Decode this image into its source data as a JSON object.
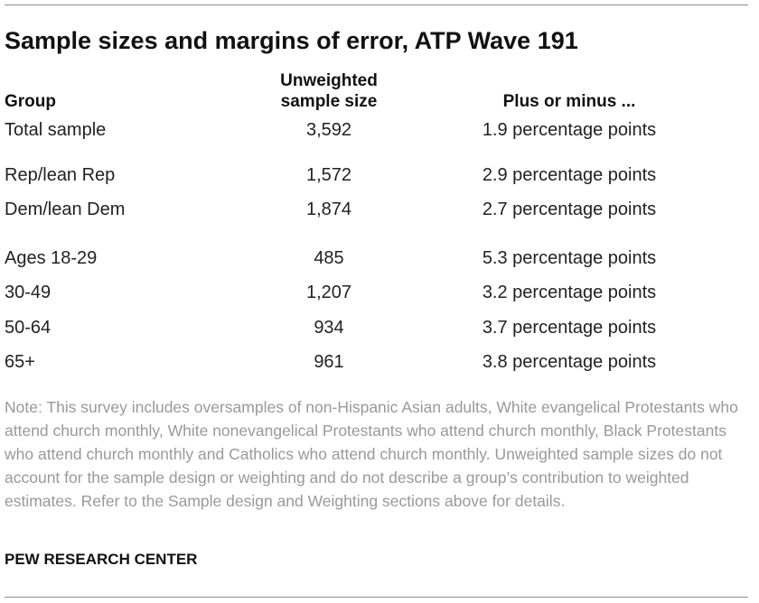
{
  "chart_data": {
    "type": "table",
    "title": "Sample sizes and margins of error, ATP Wave 191",
    "columns": [
      "Group",
      "Unweighted sample size",
      "Plus or minus ..."
    ],
    "header": {
      "group": "Group",
      "size_line1": "Unweighted",
      "size_line2": "sample size",
      "moe": "Plus or minus ..."
    },
    "rows": [
      {
        "group": "Total sample",
        "n": "3,592",
        "moe": "1.9 percentage points"
      },
      {
        "group": "Rep/lean Rep",
        "n": "1,572",
        "moe": "2.9 percentage points"
      },
      {
        "group": "Dem/lean Dem",
        "n": "1,874",
        "moe": "2.7 percentage points"
      },
      {
        "group": "Ages 18-29",
        "n": "485",
        "moe": "5.3 percentage points"
      },
      {
        "group": "30-49",
        "n": "1,207",
        "moe": "3.2 percentage points"
      },
      {
        "group": "50-64",
        "n": "934",
        "moe": "3.7 percentage points"
      },
      {
        "group": "65+",
        "n": "961",
        "moe": "3.8 percentage points"
      }
    ],
    "note": "Note: This survey includes oversamples of non-Hispanic Asian adults, White evangelical Protestants who attend church monthly, White nonevangelical Protestants who attend church monthly, Black Protestants who attend church monthly and Catholics who attend church monthly. Unweighted sample sizes do not account for the sample design or weighting and do not describe a group’s contribution to weighted estimates. Refer to the Sample design and Weighting sections above for details.",
    "source": "PEW RESEARCH CENTER"
  }
}
